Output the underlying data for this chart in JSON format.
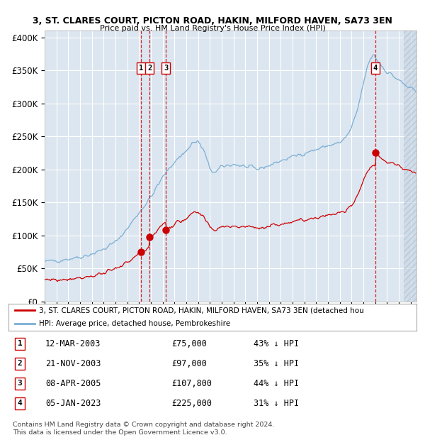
{
  "title1": "3, ST. CLARES COURT, PICTON ROAD, HAKIN, MILFORD HAVEN, SA73 3EN",
  "title2": "Price paid vs. HM Land Registry's House Price Index (HPI)",
  "plot_bg": "#dce6f0",
  "hpi_color": "#7bafd4",
  "price_color": "#cc0000",
  "transactions": [
    {
      "num": 1,
      "date_label": "12-MAR-2003",
      "date_x": 2003.19,
      "price": 75000,
      "hpi_pct": "43% ↓ HPI"
    },
    {
      "num": 2,
      "date_label": "21-NOV-2003",
      "date_x": 2003.89,
      "price": 97000,
      "hpi_pct": "35% ↓ HPI"
    },
    {
      "num": 3,
      "date_label": "08-APR-2005",
      "date_x": 2005.27,
      "price": 107800,
      "hpi_pct": "44% ↓ HPI"
    },
    {
      "num": 4,
      "date_label": "05-JAN-2023",
      "date_x": 2023.02,
      "price": 225000,
      "hpi_pct": "31% ↓ HPI"
    }
  ],
  "legend_line1": "3, ST. CLARES COURT, PICTON ROAD, HAKIN, MILFORD HAVEN, SA73 3EN (detached hou",
  "legend_line2": "HPI: Average price, detached house, Pembrokeshire",
  "footer1": "Contains HM Land Registry data © Crown copyright and database right 2024.",
  "footer2": "This data is licensed under the Open Government Licence v3.0.",
  "xmin": 1995.0,
  "xmax": 2026.5,
  "ymin": 0,
  "ymax": 410000,
  "yticks": [
    0,
    50000,
    100000,
    150000,
    200000,
    250000,
    300000,
    350000,
    400000
  ],
  "ytick_labels": [
    "£0",
    "£50K",
    "£100K",
    "£150K",
    "£200K",
    "£250K",
    "£300K",
    "£350K",
    "£400K"
  ],
  "hpi_anchors_x": [
    1995.0,
    1996.0,
    1997.0,
    1998.0,
    1999.0,
    2000.0,
    2001.0,
    2002.0,
    2003.0,
    2004.0,
    2005.0,
    2006.0,
    2007.0,
    2007.5,
    2008.0,
    2008.5,
    2009.0,
    2009.5,
    2010.0,
    2011.0,
    2012.0,
    2013.0,
    2014.0,
    2015.0,
    2016.0,
    2017.0,
    2018.0,
    2019.0,
    2020.0,
    2020.5,
    2021.0,
    2021.5,
    2022.0,
    2022.3,
    2022.6,
    2022.9,
    2023.0,
    2023.5,
    2024.0,
    2024.5,
    2025.0,
    2025.5,
    2026.0,
    2026.4
  ],
  "hpi_anchors_y": [
    60000,
    62000,
    64500,
    67500,
    72000,
    79000,
    90000,
    110000,
    135000,
    158000,
    188000,
    212000,
    228000,
    240000,
    242000,
    228000,
    200000,
    195000,
    204000,
    208000,
    204000,
    200000,
    206000,
    213000,
    219000,
    225000,
    230000,
    236000,
    240000,
    248000,
    262000,
    290000,
    330000,
    352000,
    368000,
    375000,
    370000,
    358000,
    348000,
    342000,
    335000,
    328000,
    322000,
    318000
  ]
}
